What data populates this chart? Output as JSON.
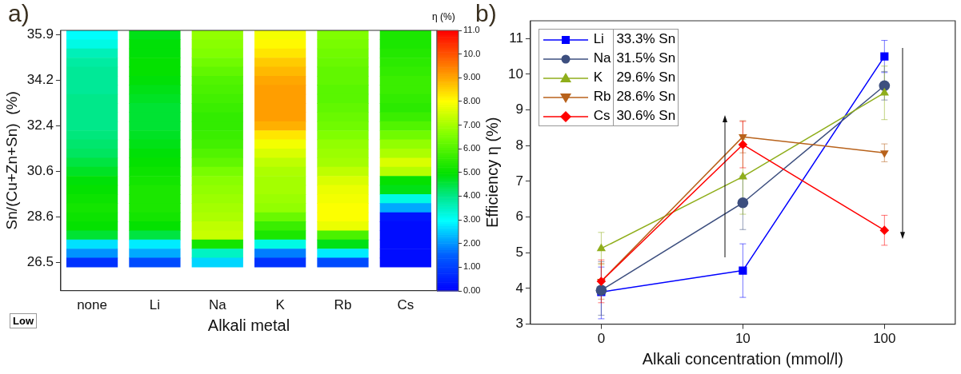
{
  "chart_data": [
    {
      "type": "heatmap",
      "title": "a)",
      "xlabel": "Alkali metal",
      "ylabel": "Sn/(Cu+Zn+Sn)  (%)",
      "clabel": "η (%)",
      "categories": [
        "none",
        "Li",
        "Na",
        "K",
        "Rb",
        "Cs"
      ],
      "y_categories": [
        "35.9",
        null,
        null,
        null,
        null,
        "34.2",
        null,
        null,
        null,
        null,
        "32.4",
        null,
        null,
        null,
        null,
        "30.6",
        null,
        null,
        null,
        null,
        "28.6",
        null,
        null,
        null,
        null,
        "26.5"
      ],
      "cells": [
        [
          3.0,
          4.8,
          6.8,
          7.9,
          6.6,
          5.3
        ],
        [
          3.2,
          4.9,
          6.7,
          8.1,
          6.5,
          5.3
        ],
        [
          3.6,
          4.9,
          6.6,
          8.3,
          6.4,
          5.4
        ],
        [
          3.8,
          5.0,
          6.4,
          8.6,
          6.3,
          5.5
        ],
        [
          3.9,
          5.0,
          6.2,
          8.8,
          6.2,
          5.6
        ],
        [
          3.9,
          4.9,
          6.0,
          9.0,
          6.2,
          5.7
        ],
        [
          3.9,
          4.8,
          5.9,
          9.1,
          6.1,
          5.7
        ],
        [
          4.0,
          4.7,
          5.8,
          9.1,
          6.1,
          5.6
        ],
        [
          4.0,
          4.6,
          5.7,
          9.1,
          6.2,
          5.5
        ],
        [
          4.0,
          4.6,
          5.6,
          9.1,
          6.3,
          5.7
        ],
        [
          4.0,
          4.6,
          5.6,
          8.9,
          6.4,
          6.0
        ],
        [
          4.1,
          4.7,
          5.7,
          8.3,
          6.6,
          6.4
        ],
        [
          4.2,
          4.8,
          5.8,
          7.9,
          6.8,
          6.8
        ],
        [
          4.3,
          4.9,
          6.0,
          7.6,
          6.9,
          7.1
        ],
        [
          4.5,
          5.0,
          6.2,
          7.3,
          7.0,
          7.6
        ],
        [
          4.7,
          5.1,
          6.5,
          7.1,
          7.3,
          7.2
        ],
        [
          4.9,
          5.2,
          6.7,
          7.0,
          7.6,
          5.0
        ],
        [
          5.0,
          5.3,
          6.8,
          7.0,
          7.8,
          4.8
        ],
        [
          5.1,
          5.3,
          6.9,
          6.9,
          7.9,
          3.2
        ],
        [
          5.2,
          5.3,
          7.0,
          6.8,
          8.0,
          2.2
        ],
        [
          5.1,
          5.2,
          7.1,
          6.3,
          8.0,
          0.3
        ],
        [
          5.0,
          5.0,
          7.3,
          5.7,
          7.8,
          0.2
        ],
        [
          4.6,
          4.5,
          7.4,
          5.3,
          5.9,
          0.2
        ],
        [
          2.7,
          2.8,
          5.2,
          3.2,
          4.8,
          0.2
        ],
        [
          2.0,
          2.2,
          3.5,
          1.8,
          2.8,
          0.2
        ],
        [
          0.8,
          1.2,
          2.6,
          0.8,
          1.2,
          0.2
        ]
      ],
      "clim": [
        0,
        11
      ],
      "cticks": [
        {
          "value": 0,
          "label": "0.00"
        },
        {
          "value": 1,
          "label": "1.00"
        },
        {
          "value": 2,
          "label": "2.00"
        },
        {
          "value": 3,
          "label": "3.00"
        },
        {
          "value": 4,
          "label": "4.00"
        },
        {
          "value": 5,
          "label": "5.00"
        },
        {
          "value": 6,
          "label": "6.00"
        },
        {
          "value": 7,
          "label": "7.00"
        },
        {
          "value": 8,
          "label": "8.00"
        },
        {
          "value": 9,
          "label": "9.00"
        },
        {
          "value": 10,
          "label": "10.0"
        },
        {
          "value": 11,
          "label": "11.0"
        }
      ],
      "annotations": [
        "Low"
      ]
    },
    {
      "type": "line",
      "title": "b)",
      "xlabel": "Alkali concentration (mmol/l)",
      "ylabel": "Efficiency η (%)",
      "categories": [
        "0",
        "10",
        "100"
      ],
      "ylim": [
        3,
        11.5
      ],
      "yticks": [
        3,
        4,
        5,
        6,
        7,
        8,
        9,
        10,
        11
      ],
      "legend": "top left",
      "annotations": [
        "33.3% Sn",
        "31.5% Sn",
        "29.6% Sn",
        "28.6% Sn",
        "30.6% Sn"
      ],
      "series": [
        {
          "name": "Li",
          "color": "#0000ff",
          "marker": "square",
          "values": [
            3.9,
            4.5,
            10.5
          ],
          "errors": [
            [
              3.15,
              4.6
            ],
            0.75,
            0.45
          ]
        },
        {
          "name": "Na",
          "color": "#3d4f7f",
          "marker": "circle",
          "values": [
            3.95,
            6.4,
            9.68
          ],
          "errors": [
            [
              3.25,
              4.75
            ],
            0.75,
            0.4
          ]
        },
        {
          "name": "K",
          "color": "#8fae1b",
          "marker": "triangle",
          "values": [
            5.12,
            7.13,
            9.48
          ],
          "errors": [
            0.45,
            1.05,
            0.75
          ]
        },
        {
          "name": "Rb",
          "color": "#b8621b",
          "marker": "triangle-down",
          "values": [
            4.2,
            8.25,
            7.8
          ],
          "errors": [
            0.5,
            0.45,
            0.25
          ]
        },
        {
          "name": "Cs",
          "color": "#ff0000",
          "marker": "diamond",
          "values": [
            4.2,
            8.03,
            5.63
          ],
          "errors": [
            0.6,
            0.65,
            0.42
          ]
        }
      ]
    }
  ]
}
